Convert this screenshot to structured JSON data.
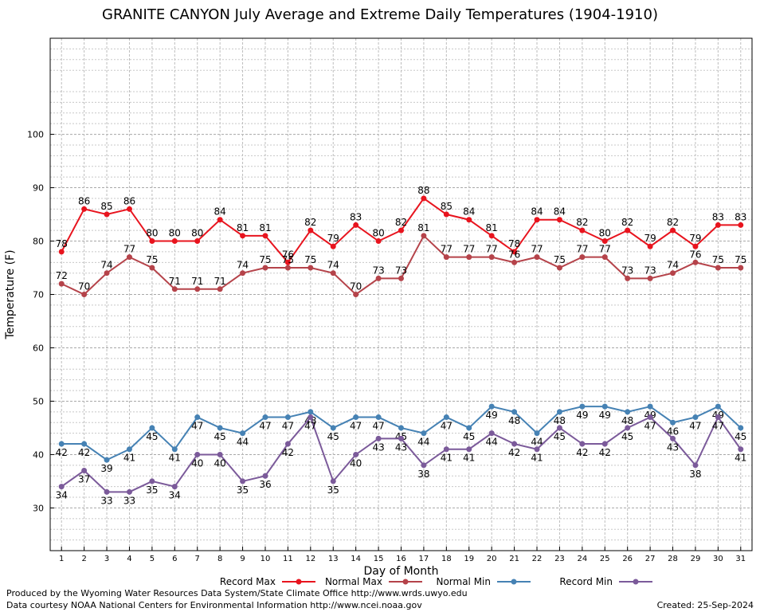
{
  "chart_data": {
    "type": "line",
    "title": "GRANITE CANYON July Average and Extreme Daily Temperatures (1904-1910)",
    "xlabel": "Day of Month",
    "ylabel": "Temperature (F)",
    "x": [
      1,
      2,
      3,
      4,
      5,
      6,
      7,
      8,
      9,
      10,
      11,
      12,
      13,
      14,
      15,
      16,
      17,
      18,
      19,
      20,
      21,
      22,
      23,
      24,
      25,
      26,
      27,
      28,
      29,
      30,
      31
    ],
    "ylim": [
      22,
      118
    ],
    "yticks": [
      30,
      40,
      50,
      60,
      70,
      80,
      90,
      100
    ],
    "grid": true,
    "legend_position": "bottom",
    "series": [
      {
        "name": "Record Max",
        "color": "#e8141e",
        "values": [
          78,
          86,
          85,
          86,
          80,
          80,
          80,
          84,
          81,
          81,
          76,
          82,
          79,
          83,
          80,
          82,
          88,
          85,
          84,
          81,
          78,
          84,
          84,
          82,
          80,
          82,
          79,
          82,
          79,
          83,
          83
        ]
      },
      {
        "name": "Normal Max",
        "color": "#b5434a",
        "values": [
          72,
          70,
          74,
          77,
          75,
          71,
          71,
          71,
          74,
          75,
          75,
          75,
          74,
          70,
          73,
          73,
          81,
          77,
          77,
          77,
          76,
          77,
          75,
          77,
          77,
          73,
          73,
          74,
          76,
          75,
          75
        ]
      },
      {
        "name": "Normal Min",
        "color": "#4682b4",
        "values": [
          42,
          42,
          39,
          41,
          45,
          41,
          47,
          45,
          44,
          47,
          47,
          48,
          45,
          47,
          47,
          45,
          44,
          47,
          45,
          49,
          48,
          44,
          48,
          49,
          49,
          48,
          49,
          46,
          47,
          49,
          45
        ]
      },
      {
        "name": "Record Min",
        "color": "#7b5a9a",
        "values": [
          34,
          37,
          33,
          33,
          35,
          34,
          40,
          40,
          35,
          36,
          42,
          47,
          35,
          40,
          43,
          43,
          38,
          41,
          41,
          44,
          42,
          41,
          45,
          42,
          42,
          45,
          47,
          43,
          38,
          47,
          41
        ]
      }
    ]
  },
  "footer": {
    "producer": "Produced by the Wyoming Water Resources Data System/State Climate Office http://www.wrds.uwyo.edu",
    "courtesy": "Data courtesy NOAA National Centers for Environmental Information http://www.ncei.noaa.gov",
    "created": "Created:  25-Sep-2024"
  }
}
